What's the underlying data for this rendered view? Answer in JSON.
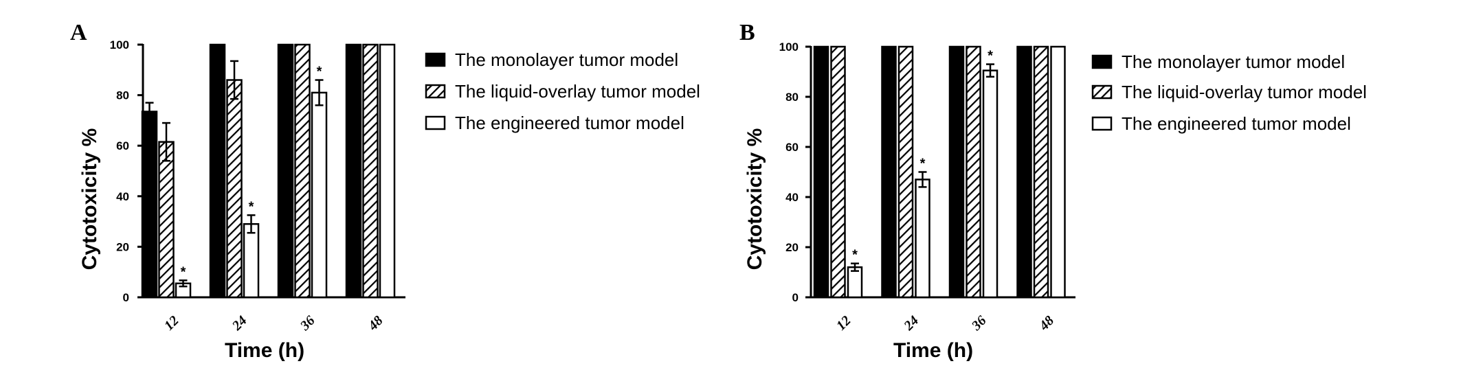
{
  "colors": {
    "bar_fill_solid": "#000000",
    "bar_fill_open": "#ffffff",
    "stroke": "#000000"
  },
  "chart_data": [
    {
      "panel": "A",
      "type": "bar",
      "xlabel": "Time (h)",
      "ylabel": "Cytotoxicity %",
      "ylim": [
        0,
        100
      ],
      "yticks": [
        "0",
        "20",
        "40",
        "60",
        "80",
        "100"
      ],
      "categories": [
        "12",
        "24",
        "36",
        "48"
      ],
      "legend_position": "right",
      "series": [
        {
          "name": "The monolayer tumor model",
          "pattern": "solid",
          "values": [
            73.5,
            100,
            100,
            100
          ],
          "errors": [
            3.5,
            0,
            0,
            0
          ],
          "significant": [
            false,
            false,
            false,
            false
          ]
        },
        {
          "name": "The liquid-overlay tumor model",
          "pattern": "hatched",
          "values": [
            61.5,
            86,
            100,
            100
          ],
          "errors": [
            7.5,
            7.5,
            0,
            0
          ],
          "significant": [
            false,
            false,
            false,
            false
          ]
        },
        {
          "name": "The engineered tumor model",
          "pattern": "open",
          "values": [
            5.5,
            29,
            81,
            100
          ],
          "errors": [
            1.2,
            3.5,
            5,
            0
          ],
          "significant": [
            true,
            true,
            true,
            false
          ]
        }
      ],
      "significance_marker": "*"
    },
    {
      "panel": "B",
      "type": "bar",
      "xlabel": "Time (h)",
      "ylabel": "Cytotoxicity %",
      "ylim": [
        0,
        100
      ],
      "yticks": [
        "0",
        "20",
        "40",
        "60",
        "80",
        "100"
      ],
      "categories": [
        "12",
        "24",
        "36",
        "48"
      ],
      "legend_position": "right",
      "series": [
        {
          "name": "The monolayer tumor model",
          "pattern": "solid",
          "values": [
            100,
            100,
            100,
            100
          ],
          "errors": [
            0,
            0,
            0,
            0
          ],
          "significant": [
            false,
            false,
            false,
            false
          ]
        },
        {
          "name": "The liquid-overlay tumor model",
          "pattern": "hatched",
          "values": [
            100,
            100,
            100,
            100
          ],
          "errors": [
            0,
            0,
            0,
            0
          ],
          "significant": [
            false,
            false,
            false,
            false
          ]
        },
        {
          "name": "The engineered tumor model",
          "pattern": "open",
          "values": [
            12,
            47,
            90.5,
            100
          ],
          "errors": [
            1.5,
            3,
            2.5,
            0
          ],
          "significant": [
            true,
            true,
            true,
            false
          ]
        }
      ],
      "significance_marker": "*"
    }
  ]
}
